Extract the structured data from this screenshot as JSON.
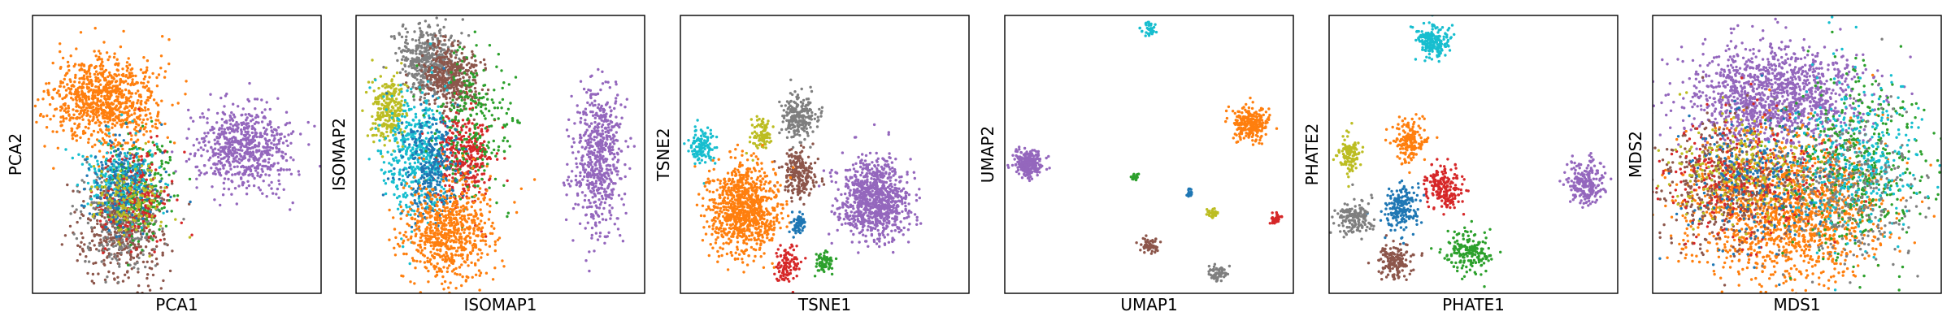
{
  "chart_data": [
    {
      "type": "scatter",
      "xlabel": "PCA1",
      "ylabel": "PCA2",
      "grid": false,
      "legend": "none",
      "xlim": [
        0,
        100
      ],
      "ylim": [
        0,
        100
      ],
      "clusters": [
        {
          "color": "#ff7f0e",
          "cx": 25,
          "cy": 69,
          "sx": 9,
          "sy": 8,
          "n": 900
        },
        {
          "color": "#9467bd",
          "cx": 73,
          "cy": 53,
          "sx": 8,
          "sy": 8,
          "n": 650
        },
        {
          "color": "#8c564b",
          "cx": 31,
          "cy": 23,
          "sx": 7,
          "sy": 9,
          "n": 450
        },
        {
          "color": "#7f7f7f",
          "cx": 31,
          "cy": 27,
          "sx": 7,
          "sy": 9,
          "n": 300
        },
        {
          "color": "#2ca02c",
          "cx": 37,
          "cy": 38,
          "sx": 6,
          "sy": 9,
          "n": 250
        },
        {
          "color": "#d62728",
          "cx": 35,
          "cy": 36,
          "sx": 6,
          "sy": 8,
          "n": 220
        },
        {
          "color": "#17becf",
          "cx": 30,
          "cy": 42,
          "sx": 6,
          "sy": 7,
          "n": 200
        },
        {
          "color": "#1f77b4",
          "cx": 31,
          "cy": 38,
          "sx": 6,
          "sy": 8,
          "n": 200
        },
        {
          "color": "#bcbd22",
          "cx": 34,
          "cy": 33,
          "sx": 6,
          "sy": 7,
          "n": 150
        }
      ]
    },
    {
      "type": "scatter",
      "xlabel": "ISOMAP1",
      "ylabel": "ISOMAP2",
      "grid": false,
      "legend": "none",
      "xlim": [
        0,
        100
      ],
      "ylim": [
        0,
        100
      ],
      "clusters": [
        {
          "color": "#7f7f7f",
          "cx": 25,
          "cy": 84,
          "sx": 5,
          "sy": 6,
          "n": 450
        },
        {
          "color": "#8c564b",
          "cx": 33,
          "cy": 78,
          "sx": 5,
          "sy": 6,
          "n": 400
        },
        {
          "color": "#bcbd22",
          "cx": 11,
          "cy": 66,
          "sx": 3,
          "sy": 6,
          "n": 250
        },
        {
          "color": "#17becf",
          "cx": 21,
          "cy": 50,
          "sx": 6,
          "sy": 11,
          "n": 450
        },
        {
          "color": "#d62728",
          "cx": 38,
          "cy": 50,
          "sx": 5,
          "sy": 8,
          "n": 350
        },
        {
          "color": "#2ca02c",
          "cx": 40,
          "cy": 62,
          "sx": 7,
          "sy": 14,
          "n": 250
        },
        {
          "color": "#1f77b4",
          "cx": 26,
          "cy": 45,
          "sx": 5,
          "sy": 10,
          "n": 300
        },
        {
          "color": "#ff7f0e",
          "cx": 31,
          "cy": 22,
          "sx": 8,
          "sy": 9,
          "n": 700
        },
        {
          "color": "#9467bd",
          "cx": 84,
          "cy": 48,
          "sx": 4,
          "sy": 13,
          "n": 600
        }
      ]
    },
    {
      "type": "scatter",
      "xlabel": "TSNE1",
      "ylabel": "TSNE2",
      "grid": false,
      "legend": "none",
      "xlim": [
        0,
        100
      ],
      "ylim": [
        0,
        100
      ],
      "clusters": [
        {
          "color": "#17becf",
          "cx": 7,
          "cy": 53,
          "sx": 2,
          "sy": 3,
          "n": 120
        },
        {
          "color": "#bcbd22",
          "cx": 28,
          "cy": 57,
          "sx": 1.8,
          "sy": 2.6,
          "n": 90
        },
        {
          "color": "#7f7f7f",
          "cx": 41,
          "cy": 64,
          "sx": 3,
          "sy": 4,
          "n": 220
        },
        {
          "color": "#8c564b",
          "cx": 41,
          "cy": 43,
          "sx": 3,
          "sy": 4,
          "n": 220
        },
        {
          "color": "#ff7f0e",
          "cx": 22,
          "cy": 30,
          "sx": 6,
          "sy": 8,
          "n": 900
        },
        {
          "color": "#9467bd",
          "cx": 67,
          "cy": 34,
          "sx": 6,
          "sy": 7,
          "n": 900
        },
        {
          "color": "#1f77b4",
          "cx": 41,
          "cy": 25,
          "sx": 1.2,
          "sy": 2,
          "n": 60
        },
        {
          "color": "#d62728",
          "cx": 37,
          "cy": 10,
          "sx": 2,
          "sy": 3,
          "n": 100
        },
        {
          "color": "#2ca02c",
          "cx": 50,
          "cy": 11,
          "sx": 1.5,
          "sy": 2,
          "n": 70
        }
      ]
    },
    {
      "type": "scatter",
      "xlabel": "UMAP1",
      "ylabel": "UMAP2",
      "grid": false,
      "legend": "none",
      "xlim": [
        0,
        100
      ],
      "ylim": [
        0,
        100
      ],
      "clusters": [
        {
          "color": "#17becf",
          "cx": 50,
          "cy": 95,
          "sx": 1.2,
          "sy": 1.2,
          "n": 40
        },
        {
          "color": "#9467bd",
          "cx": 8,
          "cy": 47,
          "sx": 2.5,
          "sy": 2.5,
          "n": 250
        },
        {
          "color": "#ff7f0e",
          "cx": 85,
          "cy": 61,
          "sx": 3,
          "sy": 3,
          "n": 260
        },
        {
          "color": "#2ca02c",
          "cx": 45,
          "cy": 42,
          "sx": 0.7,
          "sy": 0.7,
          "n": 20
        },
        {
          "color": "#1f77b4",
          "cx": 64,
          "cy": 36,
          "sx": 0.8,
          "sy": 0.8,
          "n": 20
        },
        {
          "color": "#bcbd22",
          "cx": 72,
          "cy": 29,
          "sx": 1,
          "sy": 1,
          "n": 30
        },
        {
          "color": "#d62728",
          "cx": 94,
          "cy": 27,
          "sx": 1,
          "sy": 1.2,
          "n": 30
        },
        {
          "color": "#8c564b",
          "cx": 50,
          "cy": 17,
          "sx": 1.5,
          "sy": 1.3,
          "n": 60
        },
        {
          "color": "#7f7f7f",
          "cx": 74,
          "cy": 7,
          "sx": 1.4,
          "sy": 1.4,
          "n": 60
        }
      ]
    },
    {
      "type": "scatter",
      "xlabel": "PHATE1",
      "ylabel": "PHATE2",
      "grid": false,
      "legend": "none",
      "xlim": [
        0,
        100
      ],
      "ylim": [
        0,
        100
      ],
      "clusters": [
        {
          "color": "#17becf",
          "cx": 36,
          "cy": 91,
          "sx": 3,
          "sy": 3,
          "n": 200
        },
        {
          "color": "#bcbd22",
          "cx": 7,
          "cy": 50,
          "sx": 2,
          "sy": 3,
          "n": 120
        },
        {
          "color": "#ff7f0e",
          "cx": 28,
          "cy": 55,
          "sx": 3,
          "sy": 4,
          "n": 180
        },
        {
          "color": "#d62728",
          "cx": 40,
          "cy": 38,
          "sx": 3,
          "sy": 4,
          "n": 200
        },
        {
          "color": "#1f77b4",
          "cx": 25,
          "cy": 31,
          "sx": 3,
          "sy": 4,
          "n": 180
        },
        {
          "color": "#7f7f7f",
          "cx": 9,
          "cy": 27,
          "sx": 3,
          "sy": 3,
          "n": 150
        },
        {
          "color": "#8c564b",
          "cx": 23,
          "cy": 11,
          "sx": 3,
          "sy": 3,
          "n": 150
        },
        {
          "color": "#2ca02c",
          "cx": 48,
          "cy": 15,
          "sx": 4,
          "sy": 4,
          "n": 180
        },
        {
          "color": "#9467bd",
          "cx": 89,
          "cy": 40,
          "sx": 3,
          "sy": 4,
          "n": 220
        }
      ]
    },
    {
      "type": "scatter",
      "xlabel": "MDS1",
      "ylabel": "MDS2",
      "grid": false,
      "legend": "none",
      "xlim": [
        0,
        100
      ],
      "ylim": [
        0,
        100
      ],
      "clusters": [
        {
          "color": "#9467bd",
          "cx": 42,
          "cy": 71,
          "sx": 16,
          "sy": 9,
          "n": 1300
        },
        {
          "color": "#ff7f0e",
          "cx": 47,
          "cy": 30,
          "sx": 17,
          "sy": 13,
          "n": 1500
        },
        {
          "color": "#2ca02c",
          "cx": 70,
          "cy": 46,
          "sx": 12,
          "sy": 16,
          "n": 450
        },
        {
          "color": "#17becf",
          "cx": 72,
          "cy": 48,
          "sx": 12,
          "sy": 16,
          "n": 350
        },
        {
          "color": "#8c564b",
          "cx": 24,
          "cy": 40,
          "sx": 12,
          "sy": 12,
          "n": 400
        },
        {
          "color": "#d62728",
          "cx": 30,
          "cy": 42,
          "sx": 14,
          "sy": 12,
          "n": 300
        },
        {
          "color": "#7f7f7f",
          "cx": 68,
          "cy": 38,
          "sx": 12,
          "sy": 14,
          "n": 300
        },
        {
          "color": "#bcbd22",
          "cx": 30,
          "cy": 45,
          "sx": 12,
          "sy": 10,
          "n": 250
        },
        {
          "color": "#1f77b4",
          "cx": 36,
          "cy": 40,
          "sx": 12,
          "sy": 12,
          "n": 250
        }
      ]
    }
  ]
}
